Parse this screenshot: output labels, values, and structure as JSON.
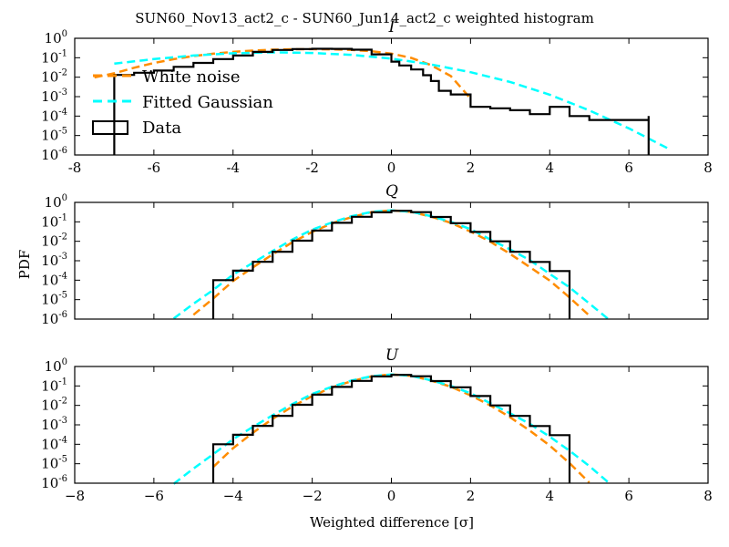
{
  "figure": {
    "title": "SUN60_Nov13_act2_c - SUN60_Jun14_act2_c weighted histogram",
    "ylabel": "PDF",
    "xlabel": "Weighted difference [σ]"
  },
  "colors": {
    "data": "#000000",
    "white_noise": "#ff8c00",
    "fitted_gaussian": "#00ffff",
    "background": "#ffffff"
  },
  "legend": {
    "placement": "upper-left of first panel",
    "entries": [
      {
        "label": "White noise",
        "style": "dashed",
        "color": "#ff8c00"
      },
      {
        "label": "Fitted Gaussian",
        "style": "dashed",
        "color": "#00ffff"
      },
      {
        "label": "Data",
        "style": "step-outline",
        "color": "#000000"
      }
    ]
  },
  "chart_data": [
    {
      "type": "line",
      "title": "I",
      "xlim": [
        -8,
        8
      ],
      "ylim_log10": [
        -6,
        0
      ],
      "yscale": "log",
      "x_ticks": [
        -8,
        -6,
        -4,
        -2,
        0,
        2,
        4,
        6,
        8
      ],
      "y_ticks": [
        {
          "base": "10",
          "exp": "0"
        },
        {
          "base": "10",
          "exp": "-1"
        },
        {
          "base": "10",
          "exp": "-2"
        },
        {
          "base": "10",
          "exp": "-3"
        },
        {
          "base": "10",
          "exp": "-4"
        },
        {
          "base": "10",
          "exp": "-5"
        },
        {
          "base": "10",
          "exp": "-6"
        }
      ],
      "series": [
        {
          "name": "White noise",
          "x": [
            -7.5,
            -7,
            -6.5,
            -6,
            -5.5,
            -5,
            -4.5,
            -4,
            -3.5,
            -3,
            -2.5,
            -2,
            -1.5,
            -1,
            -0.5,
            0,
            0.5,
            1,
            1.5,
            2
          ],
          "y": [
            0.0097,
            0.0159,
            0.0307,
            0.0536,
            0.0848,
            0.122,
            0.162,
            0.201,
            0.234,
            0.259,
            0.273,
            0.276,
            0.272,
            0.251,
            0.216,
            0.163,
            0.098,
            0.042,
            0.0115,
            0.0008
          ]
        },
        {
          "name": "Fitted Gaussian",
          "x": [
            -7,
            -6,
            -5,
            -4,
            -3,
            -2,
            -1,
            0,
            1,
            2,
            3,
            4,
            5,
            6,
            7
          ],
          "y": [
            0.05,
            0.085,
            0.13,
            0.17,
            0.19,
            0.175,
            0.14,
            0.09,
            0.045,
            0.018,
            0.0057,
            0.00126,
            0.000196,
            2.34e-05,
            2.1e-06
          ]
        },
        {
          "name": "Data",
          "x": [
            -7,
            -6.5,
            -6,
            -5.5,
            -5,
            -4.5,
            -4,
            -3.5,
            -3,
            -2.5,
            -2,
            -1.5,
            -1,
            -0.5,
            0,
            0.2,
            0.5,
            0.8,
            1,
            1.2,
            1.5,
            2,
            2.5,
            3,
            3.5,
            4,
            4.5,
            5,
            6,
            6.5
          ],
          "y": [
            0.013,
            0.017,
            0.022,
            0.034,
            0.054,
            0.085,
            0.13,
            0.2,
            0.25,
            0.28,
            0.29,
            0.285,
            0.26,
            0.15,
            0.063,
            0.04,
            0.025,
            0.0126,
            0.0063,
            0.002,
            0.0013,
            0.0003,
            0.00025,
            0.0002,
            0.000126,
            0.0003,
            0.0001,
            6.3e-05,
            6.3e-05,
            0.0001
          ]
        }
      ]
    },
    {
      "type": "line",
      "title": "Q",
      "xlim": [
        -8,
        8
      ],
      "ylim_log10": [
        -6,
        0
      ],
      "yscale": "log",
      "x_ticks": [],
      "y_ticks": [
        {
          "base": "10",
          "exp": "0"
        },
        {
          "base": "10",
          "exp": "-1"
        },
        {
          "base": "10",
          "exp": "-2"
        },
        {
          "base": "10",
          "exp": "-3"
        },
        {
          "base": "10",
          "exp": "-4"
        },
        {
          "base": "10",
          "exp": "-5"
        },
        {
          "base": "10",
          "exp": "-6"
        }
      ],
      "series": [
        {
          "name": "White noise",
          "x": [
            -5.2,
            -5,
            -4.5,
            -4,
            -3.5,
            -3,
            -2.5,
            -2,
            -1.5,
            -1,
            -0.5,
            0,
            0.5,
            1,
            1.5,
            2,
            2.5,
            3,
            3.5,
            4,
            4.5,
            5,
            5.2
          ],
          "y": [
            7e-07,
            1.66e-06,
            1.15e-05,
            9.12e-05,
            0.000457,
            0.00214,
            0.00891,
            0.0302,
            0.0832,
            0.178,
            0.316,
            0.389,
            0.324,
            0.186,
            0.0891,
            0.0316,
            0.00955,
            0.00224,
            0.000468,
            9.55e-05,
            1.29e-05,
            1.5e-06,
            7.1e-07
          ]
        },
        {
          "name": "Fitted Gaussian",
          "x": [
            -5.5,
            -5,
            -4.5,
            -4,
            -3.5,
            -3,
            -2.5,
            -2,
            -1.5,
            -1,
            -0.5,
            0,
            0.5,
            1,
            1.5,
            2,
            2.5,
            3,
            3.5,
            4,
            4.5,
            5,
            5.5
          ],
          "y": [
            1.07e-06,
            6.16e-06,
            3.16e-05,
            0.000191,
            0.000776,
            0.00316,
            0.0123,
            0.0398,
            0.0933,
            0.195,
            0.324,
            0.389,
            0.331,
            0.195,
            0.1,
            0.0417,
            0.0123,
            0.0038,
            0.00107,
            0.000209,
            4.27e-05,
            6.3e-06,
            9.3e-07
          ]
        },
        {
          "name": "Data",
          "x": [
            -4.5,
            -4,
            -3.5,
            -3,
            -2.5,
            -2,
            -1.5,
            -1,
            -0.5,
            0,
            0.5,
            1,
            1.5,
            2,
            2.5,
            3,
            3.5,
            4,
            4.5
          ],
          "y": [
            0.0001,
            0.00031,
            0.00089,
            0.0029,
            0.0107,
            0.0355,
            0.0891,
            0.182,
            0.309,
            0.372,
            0.316,
            0.178,
            0.0851,
            0.0302,
            0.01,
            0.00288,
            0.00087,
            0.000295,
            9.8e-05
          ]
        }
      ]
    },
    {
      "type": "line",
      "title": "U",
      "xlim": [
        -8,
        8
      ],
      "ylim_log10": [
        -6,
        0
      ],
      "yscale": "log",
      "x_ticks": [
        "−8",
        "−6",
        "−4",
        "−2",
        "0",
        "2",
        "4",
        "6",
        "8"
      ],
      "y_ticks": [
        {
          "base": "10",
          "exp": "0"
        },
        {
          "base": "10",
          "exp": "-1"
        },
        {
          "base": "10",
          "exp": "-2"
        },
        {
          "base": "10",
          "exp": "-3"
        },
        {
          "base": "10",
          "exp": "-4"
        },
        {
          "base": "10",
          "exp": "-5"
        },
        {
          "base": "10",
          "exp": "-6"
        }
      ],
      "series": [
        {
          "name": "White noise",
          "x": [
            -5,
            -4.5,
            -4,
            -3.5,
            -3,
            -2.5,
            -2,
            -1.5,
            -1,
            -0.5,
            0,
            0.5,
            1,
            1.5,
            2,
            2.5,
            3,
            3.5,
            4,
            4.5,
            5,
            5.2
          ],
          "y": [
            7.2e-07,
            6.8e-06,
            6.31e-05,
            0.000389,
            0.00204,
            0.00871,
            0.0302,
            0.0832,
            0.178,
            0.309,
            0.389,
            0.331,
            0.191,
            0.0912,
            0.0331,
            0.01,
            0.00245,
            0.000501,
            8.51e-05,
            1.07e-05,
            1.07e-06,
            6.9e-07
          ]
        },
        {
          "name": "Fitted Gaussian",
          "x": [
            -5.5,
            -5,
            -4.5,
            -4,
            -3.5,
            -3,
            -2.5,
            -2,
            -1.5,
            -1,
            -0.5,
            0,
            0.5,
            1,
            1.5,
            2,
            2.5,
            3,
            3.5,
            4,
            4.5,
            5,
            5.5,
            5.8
          ],
          "y": [
            9.3e-07,
            5.6e-06,
            3.09e-05,
            0.000182,
            0.000776,
            0.00309,
            0.0117,
            0.0389,
            0.0912,
            0.191,
            0.316,
            0.389,
            0.331,
            0.195,
            0.1,
            0.0417,
            0.0129,
            0.00389,
            0.00112,
            0.000245,
            4.68e-05,
            7.6e-06,
            1.02e-06,
            6.9e-07
          ]
        },
        {
          "name": "Data",
          "x": [
            -4.5,
            -4,
            -3.5,
            -3,
            -2.5,
            -2,
            -1.5,
            -1,
            -0.5,
            0,
            0.5,
            1,
            1.5,
            2,
            2.5,
            3,
            3.5,
            4,
            4.5
          ],
          "y": [
            0.0001,
            0.00031,
            0.00089,
            0.0029,
            0.0107,
            0.0355,
            0.0891,
            0.182,
            0.309,
            0.372,
            0.316,
            0.178,
            0.0851,
            0.0302,
            0.01,
            0.00288,
            0.00087,
            0.000295,
            9.8e-05
          ]
        }
      ]
    }
  ]
}
